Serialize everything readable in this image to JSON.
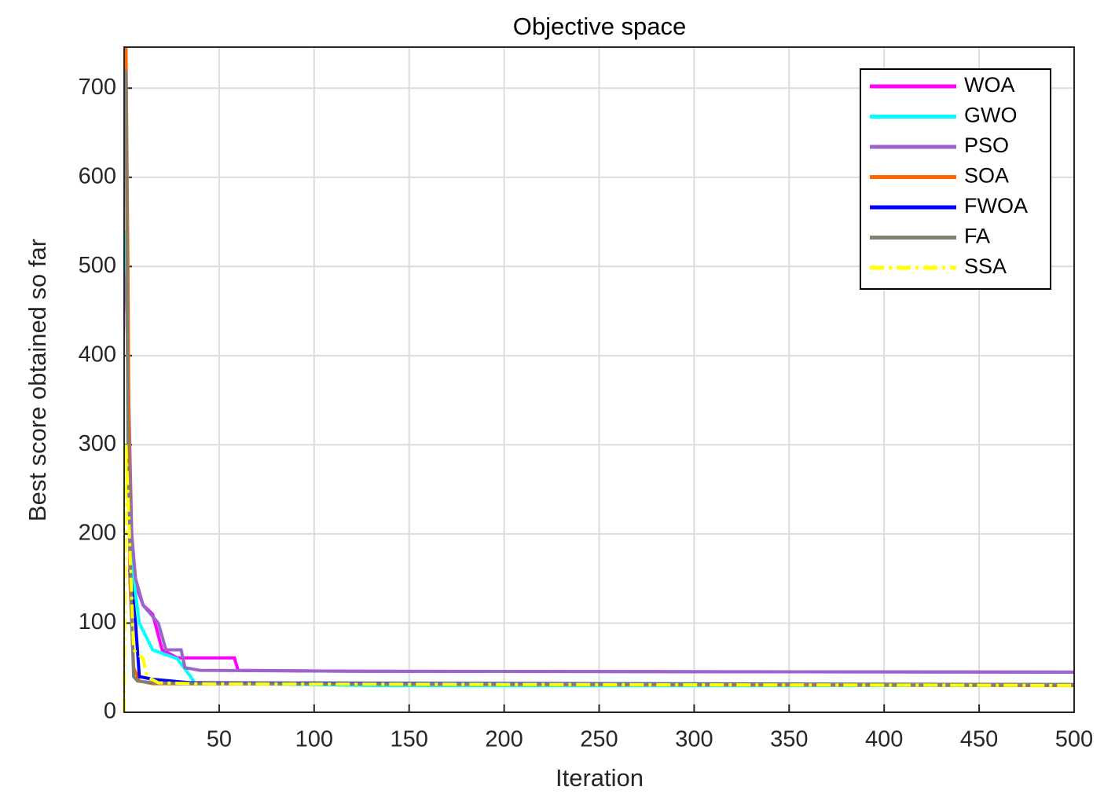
{
  "chart_data": {
    "type": "line",
    "title": "Objective space",
    "xlabel": "Iteration",
    "ylabel": "Best score obtained so far",
    "xlim": [
      0,
      500
    ],
    "ylim": [
      0,
      746
    ],
    "xticks": [
      50,
      100,
      150,
      200,
      250,
      300,
      350,
      400,
      450,
      500
    ],
    "yticks": [
      0,
      100,
      200,
      300,
      400,
      500,
      600,
      700
    ],
    "grid": true,
    "legend": "upper right",
    "series": [
      {
        "name": "WOA",
        "color": "#ff00ff",
        "linestyle": "solid",
        "x": [
          1,
          3,
          5,
          10,
          15,
          20,
          28,
          58,
          60,
          120,
          500
        ],
        "values": [
          500,
          250,
          150,
          120,
          110,
          70,
          61,
          61,
          47,
          46,
          45
        ]
      },
      {
        "name": "GWO",
        "color": "#00ffff",
        "linestyle": "solid",
        "x": [
          1,
          3,
          5,
          8,
          15,
          28,
          35,
          37,
          130,
          500
        ],
        "values": [
          540,
          250,
          150,
          100,
          70,
          60,
          40,
          33,
          30,
          30
        ]
      },
      {
        "name": "PSO",
        "color": "#9966cc",
        "linestyle": "solid",
        "x": [
          1,
          4,
          6,
          10,
          18,
          22,
          30,
          32,
          40,
          120,
          500
        ],
        "values": [
          490,
          200,
          150,
          120,
          100,
          70,
          70,
          50,
          47,
          46,
          45
        ]
      },
      {
        "name": "SOA",
        "color": "#ff6600",
        "linestyle": "solid",
        "x": [
          0,
          1,
          2,
          3,
          5,
          8,
          15,
          500
        ],
        "values": [
          745,
          745,
          500,
          150,
          50,
          35,
          32,
          30
        ]
      },
      {
        "name": "FWOA",
        "color": "#0000ff",
        "linestyle": "solid",
        "x": [
          3,
          6,
          8,
          15,
          35,
          500
        ],
        "values": [
          160,
          100,
          40,
          37,
          33,
          31
        ]
      },
      {
        "name": "FA",
        "color": "#808070",
        "linestyle": "solid",
        "x": [
          1,
          2,
          4,
          5,
          7,
          15,
          35,
          500
        ],
        "values": [
          720,
          300,
          100,
          40,
          35,
          33,
          32,
          31
        ]
      },
      {
        "name": "SSA",
        "color": "#ffff00",
        "linestyle": "dashdot",
        "x": [
          0,
          1,
          5,
          10,
          12,
          18,
          40,
          500
        ],
        "values": [
          0,
          300,
          70,
          60,
          40,
          33,
          32,
          30
        ]
      }
    ]
  }
}
